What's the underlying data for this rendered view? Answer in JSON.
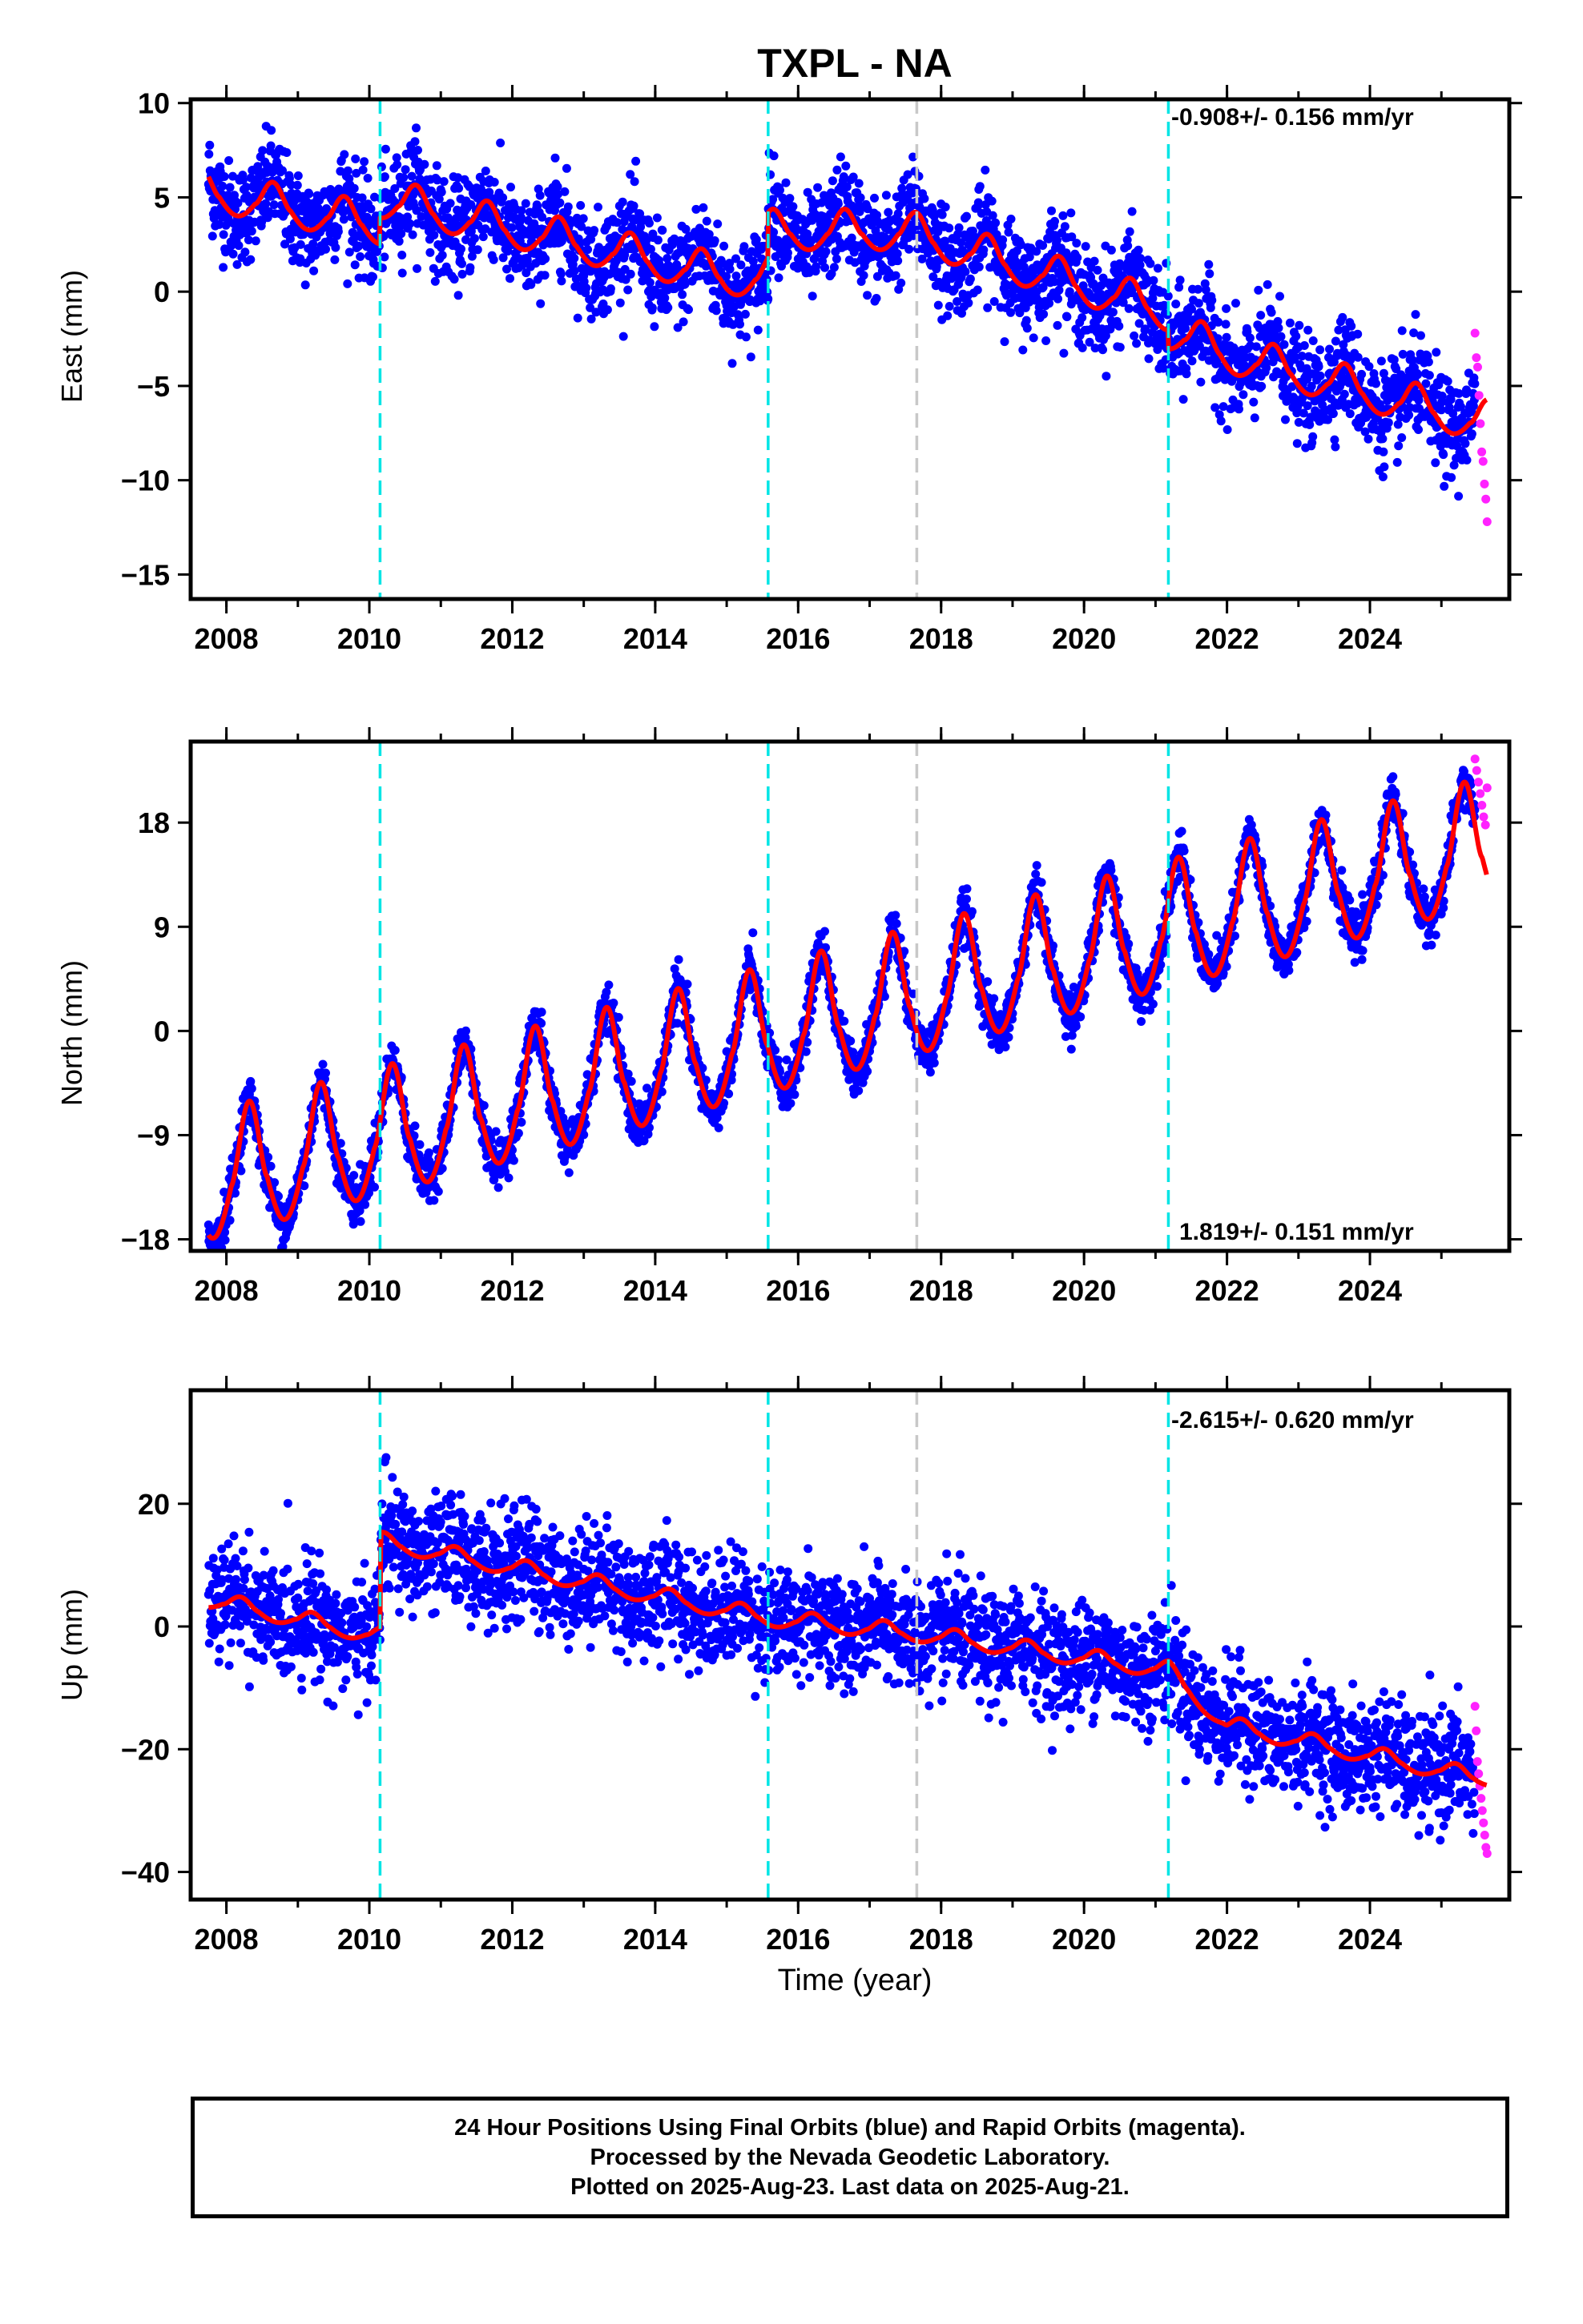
{
  "title": "TXPL - NA",
  "xlabel": "Time (year)",
  "colors": {
    "final": "#0000ff",
    "rapid": "#ff22ff",
    "model": "#ff0000",
    "equipment_change": "#00e5e5",
    "earthquake": "#c8c8c8"
  },
  "caption": {
    "line1": "24 Hour Positions Using Final Orbits (blue) and Rapid Orbits (magenta).",
    "line2": "Processed by the Nevada Geodetic Laboratory.",
    "line3": "Plotted on 2025-Aug-23. Last data on 2025-Aug-21."
  },
  "chart_data": [
    {
      "type": "scatter",
      "name": "east",
      "ylabel": "East (mm)",
      "rate_label": "-0.908+/- 0.156 mm/yr",
      "rate_position": "top-right",
      "xlim": [
        2007.5,
        2025.95
      ],
      "ylim": [
        -16.3,
        10.2
      ],
      "xticks": [
        2008,
        2010,
        2012,
        2014,
        2016,
        2018,
        2020,
        2022,
        2024
      ],
      "yticks": [
        10,
        5,
        0,
        -5,
        -10,
        -15
      ],
      "ytick_labels": [
        "10",
        "5",
        "0",
        "−5",
        "−10",
        "−15"
      ],
      "vlines_cyan": [
        2010.15,
        2015.58,
        2021.18
      ],
      "vlines_gray": [
        2017.66
      ],
      "data_range": [
        2007.75,
        2025.64
      ],
      "rapid_range": [
        2025.47,
        2025.64
      ],
      "model": {
        "trend": [
          [
            2007.75,
            5.4
          ],
          [
            2010.15,
            3.6
          ],
          [
            2015.0,
            -0.5
          ],
          [
            2017.5,
            -0.5
          ],
          [
            2021.2,
            -4.8
          ],
          [
            2022.0,
            -6.0
          ],
          [
            2025.5,
            -9.6
          ]
        ],
        "offsets": [
          {
            "at": 2010.15,
            "jump": 1.4
          },
          {
            "at": 2015.58,
            "jump": 2.4
          },
          {
            "at": 2021.18,
            "jump": -1.0
          }
        ],
        "annual_amplitude": 0.9,
        "annual_phase": 0.65
      },
      "scatter_sigma": 1.3,
      "rapid_values": [
        -2.2,
        -3.5,
        -4.0,
        -5.5,
        -7.0,
        -8.5,
        -9.0,
        -10.2,
        -11.0,
        -12.2
      ]
    },
    {
      "type": "scatter",
      "name": "north",
      "ylabel": "North (mm)",
      "rate_label": "1.819+/- 0.151 mm/yr",
      "rate_position": "bottom-right",
      "xlim": [
        2007.5,
        2025.95
      ],
      "ylim": [
        -19.0,
        25.0
      ],
      "xticks": [
        2008,
        2010,
        2012,
        2014,
        2016,
        2018,
        2020,
        2022,
        2024
      ],
      "yticks": [
        18,
        9,
        0,
        -9,
        -18
      ],
      "ytick_labels": [
        "18",
        "9",
        "0",
        "−9",
        "−18"
      ],
      "vlines_cyan": [
        2010.15,
        2015.58,
        2021.18
      ],
      "vlines_gray": [
        2017.66
      ],
      "data_range": [
        2007.75,
        2025.64
      ],
      "rapid_range": [
        2025.47,
        2025.64
      ],
      "model": {
        "trend": [
          [
            2007.75,
            -12.5
          ],
          [
            2025.64,
            16.5
          ]
        ],
        "offsets": [],
        "annual_amplitude": 4.6,
        "annual_phase": 0.32
      },
      "scatter_sigma": 1.0,
      "rapid_values": [
        23.5,
        22.5,
        21.5,
        20.5,
        19.5,
        18.5,
        17.8,
        21.0
      ]
    },
    {
      "type": "scatter",
      "name": "up",
      "ylabel": "Up (mm)",
      "rate_label": "-2.615+/- 0.620 mm/yr",
      "rate_position": "top-right",
      "xlim": [
        2007.5,
        2025.95
      ],
      "ylim": [
        -44.5,
        38.5
      ],
      "xticks": [
        2008,
        2010,
        2012,
        2014,
        2016,
        2018,
        2020,
        2022,
        2024
      ],
      "yticks": [
        20,
        0,
        -20,
        -40
      ],
      "ytick_labels": [
        "20",
        "0",
        "−20",
        "−40"
      ],
      "vlines_cyan": [
        2010.15,
        2015.58,
        2021.18
      ],
      "vlines_gray": [
        2017.66
      ],
      "data_range": [
        2007.75,
        2025.64
      ],
      "rapid_range": [
        2025.47,
        2025.64
      ],
      "model": {
        "trend": [
          [
            2007.75,
            4.5
          ],
          [
            2010.15,
            -1.5
          ],
          [
            2010.16,
            14.0
          ],
          [
            2015.58,
            1.5
          ],
          [
            2017.66,
            -1.0
          ],
          [
            2021.18,
            -7.0
          ],
          [
            2022.0,
            -16.0
          ],
          [
            2025.5,
            -24.5
          ]
        ],
        "offsets": [],
        "annual_amplitude": 1.2,
        "annual_phase": 0.2
      },
      "scatter_sigma": 4.5,
      "rapid_values": [
        -13.0,
        -17.0,
        -22.0,
        -24.0,
        -26.0,
        -28.0,
        -30.0,
        -32.0,
        -34.0,
        -36.0,
        -37.0
      ]
    }
  ]
}
